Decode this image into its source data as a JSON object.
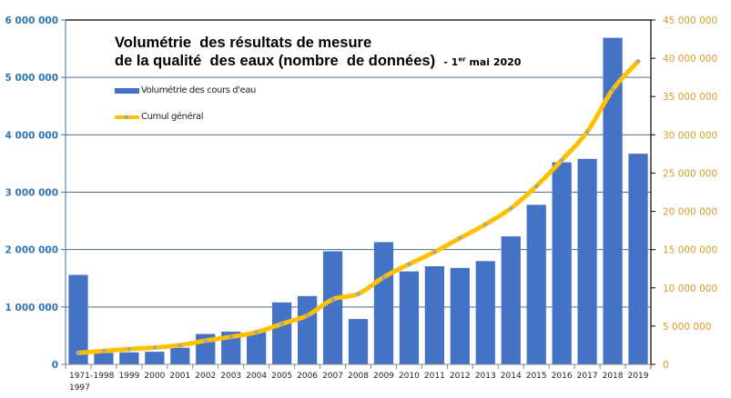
{
  "chart_data": {
    "type": "bar",
    "title_line1": "Volumétrie  des résultats de mesure",
    "title_line2": "de la qualité  des eaux (nombre  de données)",
    "subtitle_prefix": "- ",
    "subtitle_day": "1",
    "subtitle_sup": "er",
    "subtitle_rest": " mai 2020",
    "categories": [
      "1971-1997",
      "1998",
      "1999",
      "2000",
      "2001",
      "2002",
      "2003",
      "2004",
      "2005",
      "2006",
      "2007",
      "2008",
      "2009",
      "2010",
      "2011",
      "2012",
      "2013",
      "2014",
      "2015",
      "2016",
      "2017",
      "2018",
      "2019"
    ],
    "category_label_lines": [
      [
        "1971-",
        "1997"
      ],
      [
        "1998"
      ],
      [
        "1999"
      ],
      [
        "2000"
      ],
      [
        "2001"
      ],
      [
        "2002"
      ],
      [
        "2003"
      ],
      [
        "2004"
      ],
      [
        "2005"
      ],
      [
        "2006"
      ],
      [
        "2007"
      ],
      [
        "2008"
      ],
      [
        "2009"
      ],
      [
        "2010"
      ],
      [
        "2011"
      ],
      [
        "2012"
      ],
      [
        "2013"
      ],
      [
        "2014"
      ],
      [
        "2015"
      ],
      [
        "2016"
      ],
      [
        "2017"
      ],
      [
        "2018"
      ],
      [
        "2019"
      ]
    ],
    "series": [
      {
        "name": "Volumétrie des cours d'eau",
        "type": "bar",
        "axis": "left",
        "color": "#4472C4",
        "values": [
          1560000,
          200000,
          210000,
          220000,
          290000,
          530000,
          570000,
          560000,
          1080000,
          1190000,
          1970000,
          790000,
          2130000,
          1620000,
          1710000,
          1680000,
          1800000,
          2230000,
          2780000,
          3520000,
          3580000,
          5690000,
          3670000
        ]
      },
      {
        "name": "Cumul général",
        "type": "line",
        "axis": "right",
        "color": "#FFC000",
        "marker_color": "#A5A5A5",
        "values": [
          1500000,
          1750000,
          2000000,
          2200000,
          2500000,
          3100000,
          3600000,
          4200000,
          5300000,
          6400000,
          8500000,
          9200000,
          11400000,
          13100000,
          14700000,
          16500000,
          18300000,
          20400000,
          23300000,
          26700000,
          30400000,
          35900000,
          39600000
        ]
      }
    ],
    "y_left": {
      "label": "",
      "lim": [
        0,
        6000000
      ],
      "ticks": [
        0,
        1000000,
        2000000,
        3000000,
        4000000,
        5000000,
        6000000
      ],
      "tick_labels": [
        "0",
        "1 000 000",
        "2 000 000",
        "3 000 000",
        "4 000 000",
        "5 000 000",
        "6 000 000"
      ],
      "color": "#2E75B6"
    },
    "y_right": {
      "label": "",
      "lim": [
        0,
        45000000
      ],
      "ticks": [
        0,
        5000000,
        10000000,
        15000000,
        20000000,
        25000000,
        30000000,
        35000000,
        40000000,
        45000000
      ],
      "tick_labels": [
        "0",
        "5 000 000",
        "10 000 000",
        "15 000 000",
        "20 000 000",
        "25 000 000",
        "30 000 000",
        "35 000 000",
        "40 000 000",
        "45 000 000"
      ],
      "color": "#D69B2A"
    },
    "xlabel": "",
    "grid": true,
    "legend": {
      "placement": "top-left",
      "entries": [
        "Volumétrie des cours d'eau",
        "Cumul général"
      ]
    }
  }
}
